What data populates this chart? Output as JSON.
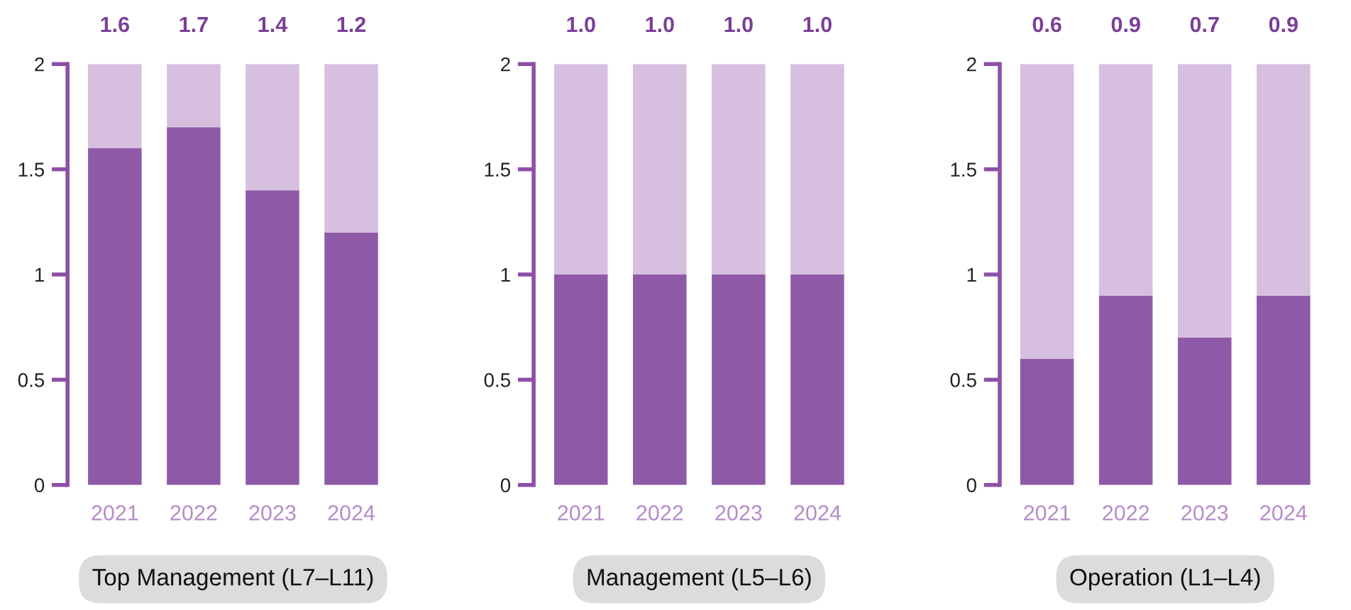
{
  "chart_data": [
    {
      "type": "bar",
      "xlabel": "Top Management (L7–L11)",
      "categories": [
        "2021",
        "2022",
        "2023",
        "2024"
      ],
      "stacked": true,
      "ylim": [
        0,
        2
      ],
      "yticks": [
        0,
        0.5,
        1,
        1.5,
        2
      ],
      "grid": false,
      "legend": false,
      "series": [
        {
          "color": "#8e5aa8",
          "values": [
            1.6,
            1.7,
            1.4,
            1.2
          ],
          "value_labels": [
            "1.6",
            "1.7",
            "1.4",
            "1.2"
          ]
        },
        {
          "color": "#d7bfe0",
          "values": [
            0.4,
            0.3,
            0.6,
            0.8
          ]
        }
      ]
    },
    {
      "type": "bar",
      "xlabel": "Management (L5–L6)",
      "categories": [
        "2021",
        "2022",
        "2023",
        "2024"
      ],
      "stacked": true,
      "ylim": [
        0,
        2
      ],
      "yticks": [
        0,
        0.5,
        1,
        1.5,
        2
      ],
      "grid": false,
      "legend": false,
      "series": [
        {
          "color": "#8e5aa8",
          "values": [
            1.0,
            1.0,
            1.0,
            1.0
          ],
          "value_labels": [
            "1.0",
            "1.0",
            "1.0",
            "1.0"
          ]
        },
        {
          "color": "#d7bfe0",
          "values": [
            1.0,
            1.0,
            1.0,
            1.0
          ]
        }
      ]
    },
    {
      "type": "bar",
      "xlabel": "Operation (L1–L4)",
      "categories": [
        "2021",
        "2022",
        "2023",
        "2024"
      ],
      "stacked": true,
      "ylim": [
        0,
        2
      ],
      "yticks": [
        0,
        0.5,
        1,
        1.5,
        2
      ],
      "grid": false,
      "legend": false,
      "series": [
        {
          "color": "#8e5aa8",
          "values": [
            0.6,
            0.9,
            0.7,
            0.9
          ],
          "value_labels": [
            "0.6",
            "0.9",
            "0.7",
            "0.9"
          ]
        },
        {
          "color": "#d7bfe0",
          "values": [
            1.4,
            1.1,
            1.3,
            1.1
          ]
        }
      ]
    }
  ]
}
